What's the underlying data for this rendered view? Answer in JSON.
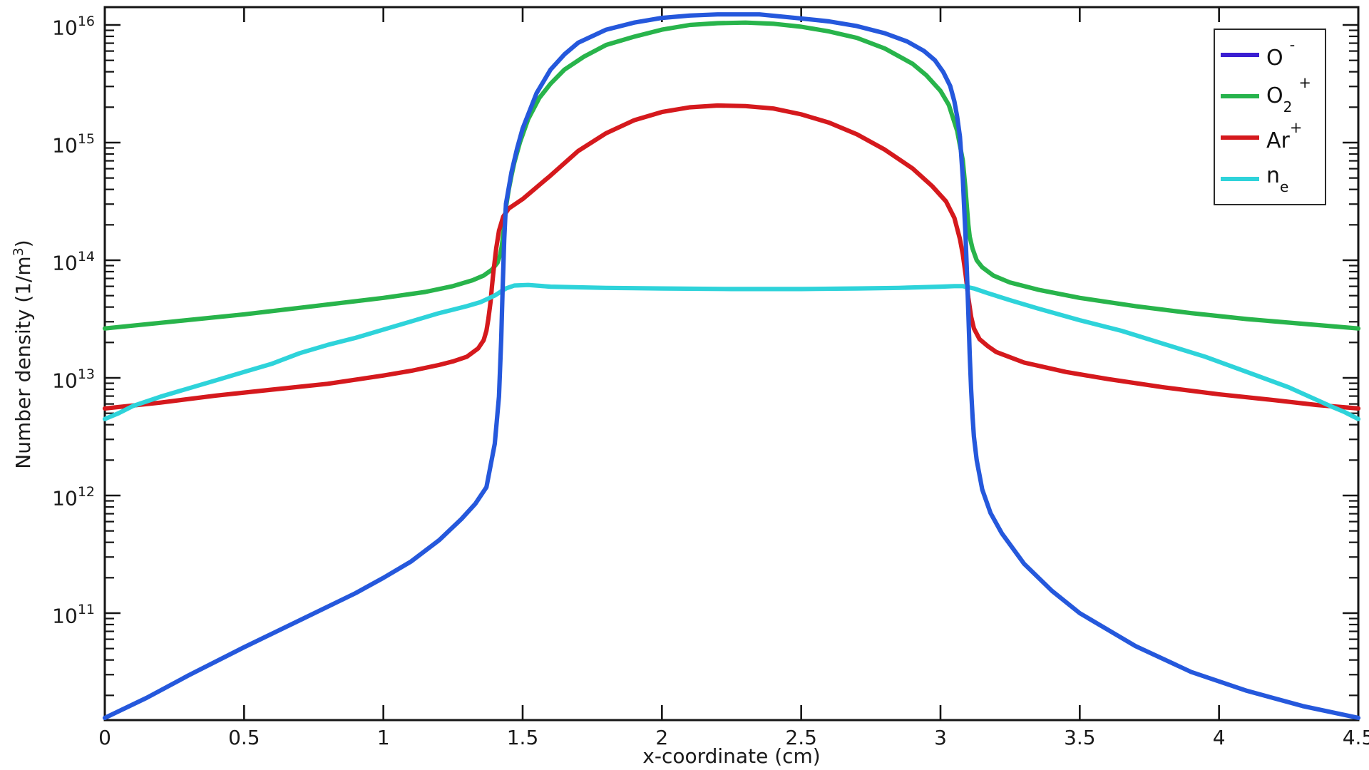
{
  "figure": {
    "background": "#ffffff",
    "frame_color": "#151515",
    "text_color": "#1a1a1a"
  },
  "chart_data": {
    "type": "line",
    "title": "",
    "xlabel": "x-coordinate (cm)",
    "ylabel": "Number density (1/m³)",
    "ylabel_parts": {
      "pre": "Number density (1/m",
      "sup": "3",
      "post": ")"
    },
    "grid": false,
    "x_axis": {
      "min": 0,
      "max": 4.5,
      "ticks": [
        0,
        0.5,
        1,
        1.5,
        2,
        2.5,
        3,
        3.5,
        4,
        4.5
      ],
      "tick_labels": [
        "0",
        "0.5",
        "1",
        "1.5",
        "2",
        "2.5",
        "3",
        "3.5",
        "4",
        "4.5"
      ]
    },
    "y_axis": {
      "scale": "log",
      "min_log": 10.09,
      "max_log": 16.152,
      "decades": [
        11,
        12,
        13,
        14,
        15,
        16
      ],
      "tick_base": "10",
      "tick_exponents": [
        "11",
        "12",
        "13",
        "14",
        "15",
        "16"
      ]
    },
    "legend": {
      "position": "top-right",
      "entries": [
        {
          "id": "o-minus",
          "main": "O",
          "sub": "",
          "sup": "-",
          "spaced": true,
          "color": "#3a1ed2"
        },
        {
          "id": "o2-plus",
          "main": "O",
          "sub": "2",
          "sup": "+",
          "spaced": true,
          "color": "#26b34c"
        },
        {
          "id": "ar-plus",
          "main": "Ar",
          "sub": "",
          "sup": "+",
          "spaced": false,
          "color": "#d5191d"
        },
        {
          "id": "n-e",
          "main": "n",
          "sub": "e",
          "sup": "",
          "spaced": false,
          "color": "#2ed3da"
        }
      ]
    },
    "series": [
      {
        "id": "o-minus",
        "label": "O -",
        "color": "#2558dc",
        "z": 4,
        "points": [
          [
            0,
            10.11
          ],
          [
            0.15,
            10.28
          ],
          [
            0.3,
            10.47
          ],
          [
            0.5,
            10.71
          ],
          [
            0.7,
            10.94
          ],
          [
            0.9,
            11.17
          ],
          [
            1.0,
            11.3
          ],
          [
            1.1,
            11.44
          ],
          [
            1.2,
            11.62
          ],
          [
            1.28,
            11.8
          ],
          [
            1.33,
            11.93
          ],
          [
            1.37,
            12.07
          ],
          [
            1.4,
            12.44
          ],
          [
            1.415,
            12.84
          ],
          [
            1.423,
            13.32
          ],
          [
            1.428,
            13.75
          ],
          [
            1.434,
            14.18
          ],
          [
            1.44,
            14.48
          ],
          [
            1.46,
            14.75
          ],
          [
            1.48,
            14.95
          ],
          [
            1.5,
            15.12
          ],
          [
            1.55,
            15.42
          ],
          [
            1.6,
            15.62
          ],
          [
            1.65,
            15.75
          ],
          [
            1.7,
            15.85
          ],
          [
            1.8,
            15.96
          ],
          [
            1.9,
            16.02
          ],
          [
            2.0,
            16.06
          ],
          [
            2.1,
            16.08
          ],
          [
            2.2,
            16.09
          ],
          [
            2.35,
            16.09
          ],
          [
            2.5,
            16.055
          ],
          [
            2.6,
            16.03
          ],
          [
            2.7,
            15.99
          ],
          [
            2.8,
            15.93
          ],
          [
            2.88,
            15.86
          ],
          [
            2.94,
            15.78
          ],
          [
            2.98,
            15.7
          ],
          [
            3.01,
            15.6
          ],
          [
            3.035,
            15.48
          ],
          [
            3.05,
            15.35
          ],
          [
            3.06,
            15.22
          ],
          [
            3.07,
            15.05
          ],
          [
            3.08,
            14.7
          ],
          [
            3.085,
            14.45
          ],
          [
            3.09,
            14.2
          ],
          [
            3.095,
            13.9
          ],
          [
            3.1,
            13.55
          ],
          [
            3.105,
            13.2
          ],
          [
            3.11,
            12.9
          ],
          [
            3.115,
            12.68
          ],
          [
            3.12,
            12.5
          ],
          [
            3.13,
            12.3
          ],
          [
            3.15,
            12.05
          ],
          [
            3.18,
            11.85
          ],
          [
            3.22,
            11.68
          ],
          [
            3.3,
            11.42
          ],
          [
            3.4,
            11.19
          ],
          [
            3.5,
            11.0
          ],
          [
            3.7,
            10.72
          ],
          [
            3.9,
            10.5
          ],
          [
            4.1,
            10.34
          ],
          [
            4.3,
            10.21
          ],
          [
            4.5,
            10.11
          ]
        ]
      },
      {
        "id": "o2-plus",
        "label": "O2 +",
        "color": "#28b44b",
        "z": 1,
        "points": [
          [
            0,
            13.42
          ],
          [
            0.25,
            13.48
          ],
          [
            0.5,
            13.54
          ],
          [
            0.75,
            13.61
          ],
          [
            1.0,
            13.68
          ],
          [
            1.15,
            13.73
          ],
          [
            1.25,
            13.78
          ],
          [
            1.32,
            13.83
          ],
          [
            1.36,
            13.87
          ],
          [
            1.39,
            13.92
          ],
          [
            1.41,
            13.98
          ],
          [
            1.42,
            14.05
          ],
          [
            1.425,
            14.12
          ],
          [
            1.43,
            14.22
          ],
          [
            1.435,
            14.32
          ],
          [
            1.44,
            14.45
          ],
          [
            1.45,
            14.6
          ],
          [
            1.46,
            14.72
          ],
          [
            1.47,
            14.83
          ],
          [
            1.49,
            15.0
          ],
          [
            1.52,
            15.2
          ],
          [
            1.56,
            15.38
          ],
          [
            1.6,
            15.5
          ],
          [
            1.65,
            15.62
          ],
          [
            1.72,
            15.73
          ],
          [
            1.8,
            15.83
          ],
          [
            1.9,
            15.9
          ],
          [
            2.0,
            15.96
          ],
          [
            2.1,
            16.0
          ],
          [
            2.2,
            16.015
          ],
          [
            2.3,
            16.02
          ],
          [
            2.4,
            16.01
          ],
          [
            2.5,
            15.985
          ],
          [
            2.6,
            15.945
          ],
          [
            2.7,
            15.89
          ],
          [
            2.8,
            15.8
          ],
          [
            2.9,
            15.67
          ],
          [
            2.95,
            15.57
          ],
          [
            3.0,
            15.44
          ],
          [
            3.03,
            15.32
          ],
          [
            3.06,
            15.1
          ],
          [
            3.08,
            14.85
          ],
          [
            3.09,
            14.6
          ],
          [
            3.095,
            14.45
          ],
          [
            3.1,
            14.3
          ],
          [
            3.105,
            14.2
          ],
          [
            3.115,
            14.1
          ],
          [
            3.13,
            14.0
          ],
          [
            3.15,
            13.94
          ],
          [
            3.19,
            13.87
          ],
          [
            3.25,
            13.81
          ],
          [
            3.35,
            13.75
          ],
          [
            3.5,
            13.68
          ],
          [
            3.7,
            13.61
          ],
          [
            3.9,
            13.55
          ],
          [
            4.1,
            13.5
          ],
          [
            4.3,
            13.46
          ],
          [
            4.5,
            13.42
          ]
        ]
      },
      {
        "id": "ar-plus",
        "label": "Ar+",
        "color": "#d5191d",
        "z": 2,
        "points": [
          [
            0,
            12.74
          ],
          [
            0.2,
            12.79
          ],
          [
            0.4,
            12.85
          ],
          [
            0.6,
            12.9
          ],
          [
            0.8,
            12.95
          ],
          [
            1.0,
            13.02
          ],
          [
            1.1,
            13.06
          ],
          [
            1.2,
            13.11
          ],
          [
            1.25,
            13.14
          ],
          [
            1.3,
            13.18
          ],
          [
            1.34,
            13.25
          ],
          [
            1.36,
            13.32
          ],
          [
            1.37,
            13.4
          ],
          [
            1.377,
            13.5
          ],
          [
            1.385,
            13.65
          ],
          [
            1.39,
            13.78
          ],
          [
            1.395,
            13.9
          ],
          [
            1.405,
            14.1
          ],
          [
            1.415,
            14.25
          ],
          [
            1.43,
            14.37
          ],
          [
            1.45,
            14.44
          ],
          [
            1.5,
            14.52
          ],
          [
            1.55,
            14.62
          ],
          [
            1.6,
            14.72
          ],
          [
            1.7,
            14.93
          ],
          [
            1.8,
            15.08
          ],
          [
            1.9,
            15.19
          ],
          [
            2.0,
            15.26
          ],
          [
            2.1,
            15.3
          ],
          [
            2.2,
            15.315
          ],
          [
            2.3,
            15.31
          ],
          [
            2.4,
            15.29
          ],
          [
            2.5,
            15.24
          ],
          [
            2.6,
            15.17
          ],
          [
            2.7,
            15.07
          ],
          [
            2.8,
            14.94
          ],
          [
            2.9,
            14.78
          ],
          [
            2.97,
            14.63
          ],
          [
            3.02,
            14.5
          ],
          [
            3.05,
            14.36
          ],
          [
            3.07,
            14.18
          ],
          [
            3.08,
            14.05
          ],
          [
            3.09,
            13.88
          ],
          [
            3.1,
            13.68
          ],
          [
            3.11,
            13.52
          ],
          [
            3.12,
            13.42
          ],
          [
            3.14,
            13.33
          ],
          [
            3.17,
            13.27
          ],
          [
            3.2,
            13.22
          ],
          [
            3.3,
            13.13
          ],
          [
            3.45,
            13.05
          ],
          [
            3.6,
            12.99
          ],
          [
            3.8,
            12.92
          ],
          [
            4.0,
            12.86
          ],
          [
            4.2,
            12.81
          ],
          [
            4.35,
            12.77
          ],
          [
            4.5,
            12.74
          ]
        ]
      },
      {
        "id": "n-e",
        "label": "ne",
        "color": "#2ed3da",
        "z": 3,
        "points": [
          [
            0,
            12.65
          ],
          [
            0.05,
            12.7
          ],
          [
            0.1,
            12.76
          ],
          [
            0.2,
            12.84
          ],
          [
            0.3,
            12.91
          ],
          [
            0.4,
            12.98
          ],
          [
            0.5,
            13.05
          ],
          [
            0.6,
            13.12
          ],
          [
            0.7,
            13.21
          ],
          [
            0.8,
            13.28
          ],
          [
            0.9,
            13.34
          ],
          [
            1.0,
            13.41
          ],
          [
            1.1,
            13.48
          ],
          [
            1.2,
            13.55
          ],
          [
            1.3,
            13.61
          ],
          [
            1.35,
            13.645
          ],
          [
            1.4,
            13.7
          ],
          [
            1.42,
            13.73
          ],
          [
            1.44,
            13.76
          ],
          [
            1.47,
            13.785
          ],
          [
            1.52,
            13.79
          ],
          [
            1.6,
            13.775
          ],
          [
            1.8,
            13.765
          ],
          [
            2.0,
            13.76
          ],
          [
            2.25,
            13.755
          ],
          [
            2.5,
            13.755
          ],
          [
            2.7,
            13.76
          ],
          [
            2.85,
            13.765
          ],
          [
            3.0,
            13.775
          ],
          [
            3.05,
            13.78
          ],
          [
            3.08,
            13.78
          ],
          [
            3.12,
            13.76
          ],
          [
            3.17,
            13.72
          ],
          [
            3.25,
            13.66
          ],
          [
            3.35,
            13.59
          ],
          [
            3.5,
            13.49
          ],
          [
            3.65,
            13.4
          ],
          [
            3.8,
            13.29
          ],
          [
            3.95,
            13.18
          ],
          [
            4.1,
            13.05
          ],
          [
            4.25,
            12.92
          ],
          [
            4.4,
            12.76
          ],
          [
            4.45,
            12.71
          ],
          [
            4.5,
            12.65
          ]
        ]
      }
    ]
  }
}
